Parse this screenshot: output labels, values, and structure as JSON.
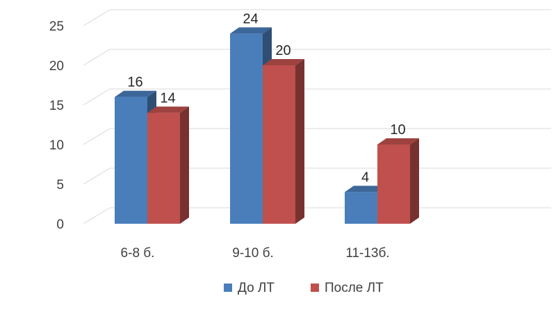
{
  "chart_data": {
    "type": "bar",
    "style": "3d-clustered-column",
    "title": "",
    "xlabel": "",
    "ylabel": "",
    "categories": [
      "6-8 б.",
      "9-10 б.",
      "11-13б."
    ],
    "series": [
      {
        "name": "До ЛТ",
        "values": [
          16,
          24,
          4
        ],
        "color": "#4a7ebb"
      },
      {
        "name": "После ЛТ",
        "values": [
          14,
          20,
          10
        ],
        "color": "#c0504d"
      }
    ],
    "ylim": [
      0,
      25
    ],
    "yticks": [
      0,
      5,
      10,
      15,
      20,
      25
    ],
    "grid": true,
    "legend_position": "bottom",
    "data_labels": true
  }
}
